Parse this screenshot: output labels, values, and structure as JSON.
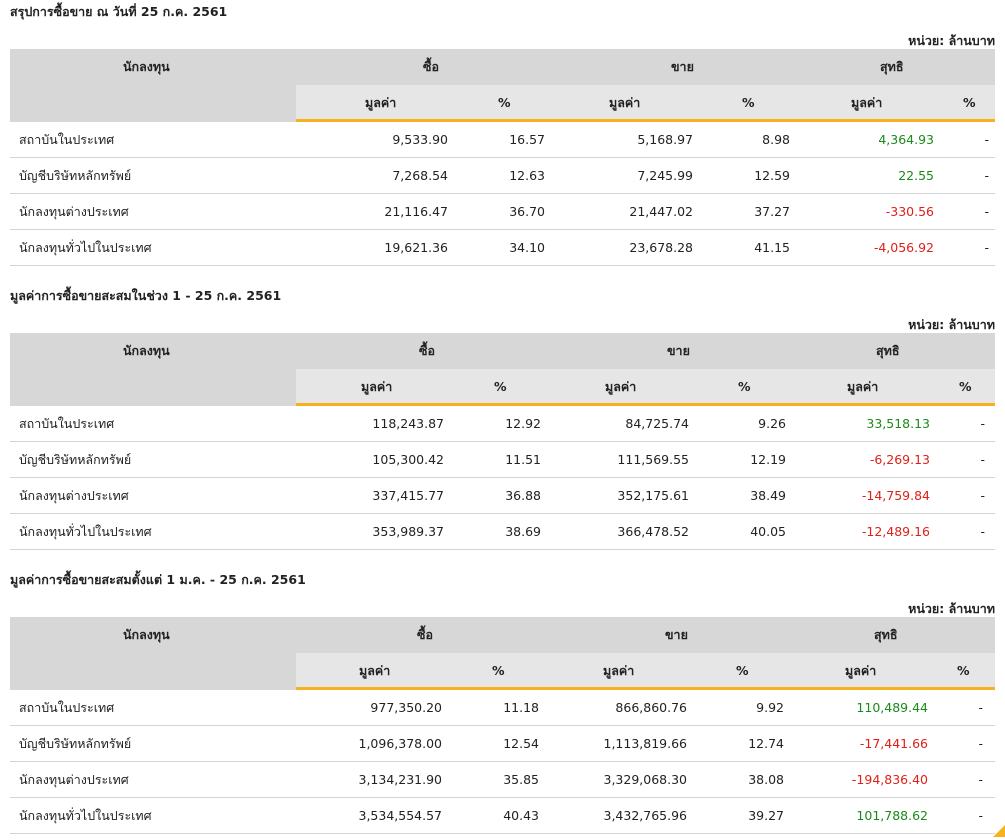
{
  "unit_label": "หน่วย: ล้านบาท",
  "header": {
    "investor": "นักลงทุน",
    "buy": "ซื้อ",
    "sell": "ขาย",
    "net": "สุทธิ",
    "value": "มูลค่า",
    "percent": "%"
  },
  "sections": [
    {
      "title": "สรุปการซื้อขาย ณ วันที่ 25 ก.ค. 2561",
      "rows": [
        {
          "name": "สถาบันในประเทศ",
          "buy_value": "9,533.90",
          "buy_pct": "16.57",
          "sell_value": "5,168.97",
          "sell_pct": "8.98",
          "net_value": "4,364.93",
          "net_pct": "-",
          "net_sign": "pos"
        },
        {
          "name": "บัญชีบริษัทหลักทรัพย์",
          "buy_value": "7,268.54",
          "buy_pct": "12.63",
          "sell_value": "7,245.99",
          "sell_pct": "12.59",
          "net_value": "22.55",
          "net_pct": "-",
          "net_sign": "pos"
        },
        {
          "name": "นักลงทุนต่างประเทศ",
          "buy_value": "21,116.47",
          "buy_pct": "36.70",
          "sell_value": "21,447.02",
          "sell_pct": "37.27",
          "net_value": "-330.56",
          "net_pct": "-",
          "net_sign": "neg"
        },
        {
          "name": "นักลงทุนทั่วไปในประเทศ",
          "buy_value": "19,621.36",
          "buy_pct": "34.10",
          "sell_value": "23,678.28",
          "sell_pct": "41.15",
          "net_value": "-4,056.92",
          "net_pct": "-",
          "net_sign": "neg"
        }
      ]
    },
    {
      "title": "มูลค่าการซื้อขายสะสมในช่วง 1 - 25 ก.ค. 2561",
      "rows": [
        {
          "name": "สถาบันในประเทศ",
          "buy_value": "118,243.87",
          "buy_pct": "12.92",
          "sell_value": "84,725.74",
          "sell_pct": "9.26",
          "net_value": "33,518.13",
          "net_pct": "-",
          "net_sign": "pos"
        },
        {
          "name": "บัญชีบริษัทหลักทรัพย์",
          "buy_value": "105,300.42",
          "buy_pct": "11.51",
          "sell_value": "111,569.55",
          "sell_pct": "12.19",
          "net_value": "-6,269.13",
          "net_pct": "-",
          "net_sign": "neg"
        },
        {
          "name": "นักลงทุนต่างประเทศ",
          "buy_value": "337,415.77",
          "buy_pct": "36.88",
          "sell_value": "352,175.61",
          "sell_pct": "38.49",
          "net_value": "-14,759.84",
          "net_pct": "-",
          "net_sign": "neg"
        },
        {
          "name": "นักลงทุนทั่วไปในประเทศ",
          "buy_value": "353,989.37",
          "buy_pct": "38.69",
          "sell_value": "366,478.52",
          "sell_pct": "40.05",
          "net_value": "-12,489.16",
          "net_pct": "-",
          "net_sign": "neg"
        }
      ]
    },
    {
      "title": "มูลค่าการซื้อขายสะสมตั้งแต่ 1 ม.ค. - 25 ก.ค. 2561",
      "rows": [
        {
          "name": "สถาบันในประเทศ",
          "buy_value": "977,350.20",
          "buy_pct": "11.18",
          "sell_value": "866,860.76",
          "sell_pct": "9.92",
          "net_value": "110,489.44",
          "net_pct": "-",
          "net_sign": "pos"
        },
        {
          "name": "บัญชีบริษัทหลักทรัพย์",
          "buy_value": "1,096,378.00",
          "buy_pct": "12.54",
          "sell_value": "1,113,819.66",
          "sell_pct": "12.74",
          "net_value": "-17,441.66",
          "net_pct": "-",
          "net_sign": "neg"
        },
        {
          "name": "นักลงทุนต่างประเทศ",
          "buy_value": "3,134,231.90",
          "buy_pct": "35.85",
          "sell_value": "3,329,068.30",
          "sell_pct": "38.08",
          "net_value": "-194,836.40",
          "net_pct": "-",
          "net_sign": "neg"
        },
        {
          "name": "นักลงทุนทั่วไปในประเทศ",
          "buy_value": "3,534,554.57",
          "buy_pct": "40.43",
          "sell_value": "3,432,765.96",
          "sell_pct": "39.27",
          "net_value": "101,788.62",
          "net_pct": "-",
          "net_sign": "pos"
        }
      ]
    }
  ],
  "colors": {
    "accent": "#f5b21c",
    "positive": "#1a8a1a",
    "negative": "#e0201a",
    "header_bg": "#d7d7d7"
  }
}
